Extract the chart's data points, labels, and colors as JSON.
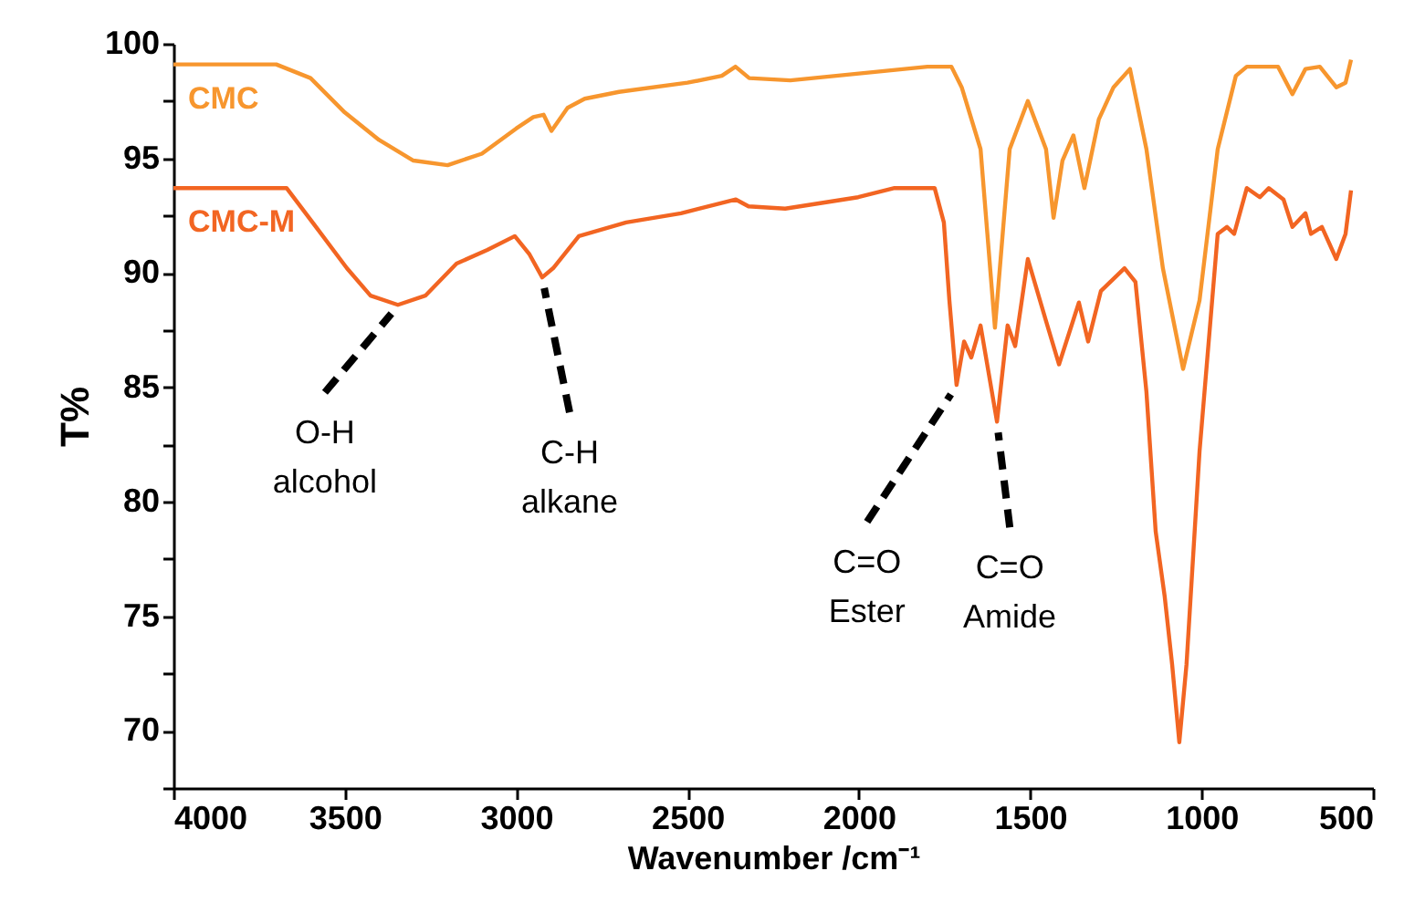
{
  "chart_data": {
    "type": "line",
    "xlabel": "Wavenumber /cm⁻¹",
    "ylabel": "T%",
    "xlim": [
      4000,
      500
    ],
    "xticks": [
      4000,
      3500,
      3000,
      2500,
      2000,
      1500,
      1000,
      500
    ],
    "ylim": [
      67.5,
      100
    ],
    "yticks": [
      {
        "value": 67.5,
        "label": null
      },
      70,
      {
        "value": 72.5,
        "label": null
      },
      75,
      {
        "value": 77.5,
        "label": null
      },
      80,
      {
        "value": 82.5,
        "label": null
      },
      85,
      {
        "value": 87.5,
        "label": null
      },
      90,
      {
        "value": 92.5,
        "label": null
      },
      95,
      {
        "value": 97.5,
        "label": null
      },
      100
    ],
    "grid": false,
    "legend": false,
    "series": [
      {
        "name": "CMC",
        "color": "#f7962e",
        "x": [
          4000,
          3700,
          3600,
          3500,
          3400,
          3300,
          3200,
          3100,
          3000,
          2950,
          2920,
          2897,
          2850,
          2800,
          2700,
          2500,
          2400,
          2360,
          2320,
          2200,
          2000,
          1800,
          1730,
          1700,
          1645,
          1603,
          1560,
          1507,
          1454,
          1432,
          1406,
          1374,
          1342,
          1300,
          1257,
          1209,
          1161,
          1113,
          1054,
          1006,
          953,
          900,
          868,
          777,
          735,
          697,
          655,
          607,
          580,
          564
        ],
        "values": [
          99.1,
          99.1,
          98.5,
          97.0,
          95.8,
          94.9,
          94.7,
          95.2,
          96.3,
          96.8,
          96.9,
          96.2,
          97.2,
          97.6,
          97.9,
          98.3,
          98.6,
          99.0,
          98.5,
          98.4,
          98.7,
          99.0,
          99.0,
          98.1,
          95.4,
          87.6,
          95.4,
          97.5,
          95.4,
          92.4,
          94.9,
          96.0,
          93.7,
          96.7,
          98.1,
          98.9,
          95.4,
          90.2,
          85.8,
          88.8,
          95.4,
          98.6,
          99.0,
          99.0,
          97.8,
          98.9,
          99.0,
          98.1,
          98.3,
          99.3
        ]
      },
      {
        "name": "CMC-M",
        "color": "#f26522",
        "x": [
          4000,
          3670,
          3584,
          3494,
          3425,
          3345,
          3265,
          3174,
          3084,
          3004,
          2961,
          2924,
          2892,
          2817,
          2679,
          2519,
          2359,
          2322,
          2215,
          2002,
          1896,
          1779,
          1752,
          1736,
          1715,
          1693,
          1672,
          1645,
          1597,
          1566,
          1544,
          1507,
          1454,
          1416,
          1358,
          1331,
          1294,
          1225,
          1193,
          1161,
          1134,
          1108,
          1086,
          1065,
          1044,
          1006,
          953,
          926,
          905,
          868,
          830,
          804,
          761,
          735,
          697,
          681,
          649,
          607,
          580,
          564
        ],
        "values": [
          93.7,
          93.7,
          92.0,
          90.2,
          89.0,
          88.6,
          89.0,
          90.4,
          91.0,
          91.6,
          90.8,
          89.8,
          90.2,
          91.6,
          92.2,
          92.6,
          93.2,
          92.9,
          92.8,
          93.3,
          93.7,
          93.7,
          92.2,
          88.8,
          85.1,
          87.0,
          86.3,
          87.7,
          83.5,
          87.7,
          86.8,
          90.6,
          87.9,
          86.0,
          88.7,
          87.0,
          89.2,
          90.2,
          89.6,
          84.8,
          78.7,
          75.9,
          72.9,
          69.5,
          72.9,
          82.2,
          91.7,
          92.0,
          91.7,
          93.7,
          93.3,
          93.7,
          93.2,
          92.0,
          92.6,
          91.7,
          92.0,
          90.6,
          91.7,
          93.6
        ]
      }
    ],
    "annotations": [
      {
        "text": "O-H\nalcohol",
        "x": 3345,
        "y": 88.6
      },
      {
        "text": "C-H\nalkane",
        "x": 2924,
        "y": 89.8
      },
      {
        "text": "C=O\nEster",
        "x": 1715,
        "y": 85.1
      },
      {
        "text": "C=O\nAmide",
        "x": 1597,
        "y": 83.5
      }
    ]
  }
}
